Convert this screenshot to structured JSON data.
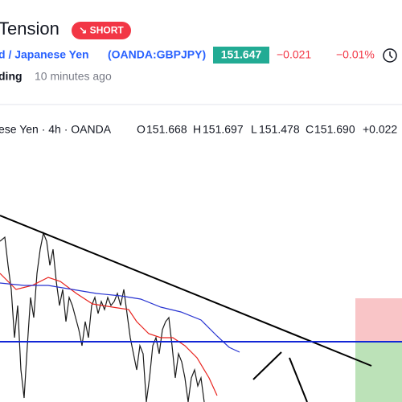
{
  "header": {
    "title": "Tension",
    "badge": "↘ SHORT",
    "symbol_name": "d / Japanese Yen",
    "symbol_code": "(OANDA:GBPJPY)",
    "price": "151.647",
    "change": "−0.021",
    "change_percent": "−0.01%",
    "author": "ding",
    "time": "10 minutes ago"
  },
  "chart_legend": {
    "symbol": "ese Yen · 4h · OANDA",
    "open_label": "O",
    "open": "151.668",
    "high_label": "H",
    "high": "151.697",
    "low_label": "L",
    "low": "151.478",
    "close_label": "C",
    "close": "151.690",
    "change": "+0.022"
  }
}
